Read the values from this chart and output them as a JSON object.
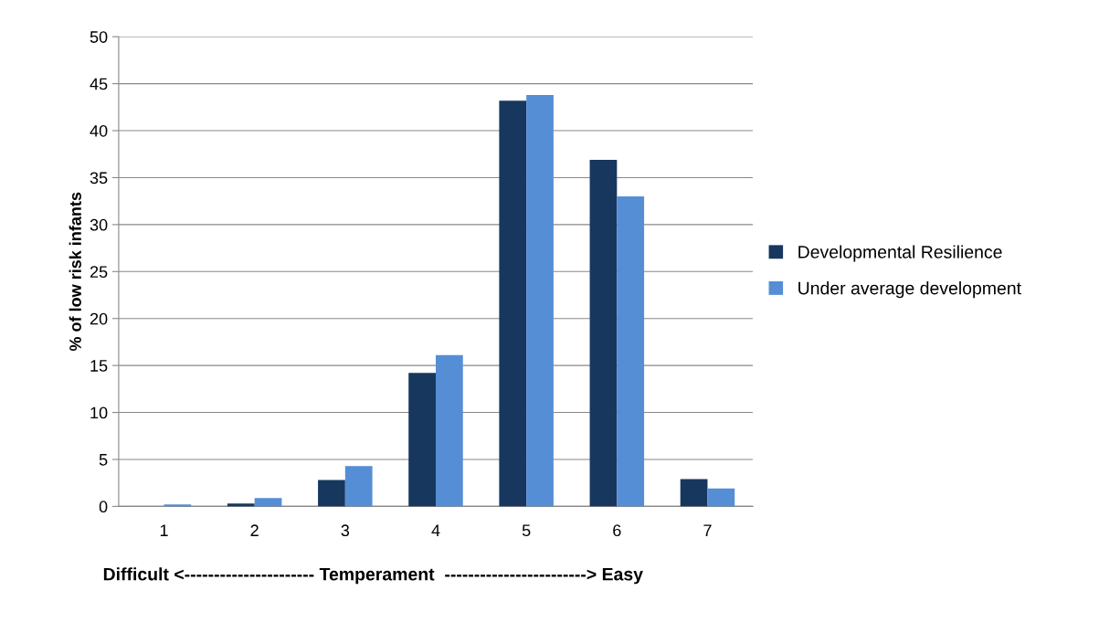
{
  "chart_data": {
    "type": "bar",
    "xlabel": "Difficult <---------------------- Temperament  ------------------------> Easy",
    "ylabel": "% of low risk infants",
    "categories": [
      "1",
      "2",
      "3",
      "4",
      "5",
      "6",
      "7"
    ],
    "series": [
      {
        "name": "Developmental Resilience",
        "color": "#17375e",
        "values": [
          0,
          0.3,
          2.8,
          14.2,
          43.2,
          36.9,
          2.9
        ]
      },
      {
        "name": "Under average development",
        "color": "#558ed5",
        "values": [
          0.2,
          0.9,
          4.3,
          16.1,
          43.8,
          33.0,
          1.9
        ]
      }
    ],
    "ylim": [
      0,
      50
    ],
    "yticks": [
      0,
      5,
      10,
      15,
      20,
      25,
      30,
      35,
      40,
      45,
      50
    ],
    "grid": "y",
    "legend": "right"
  }
}
